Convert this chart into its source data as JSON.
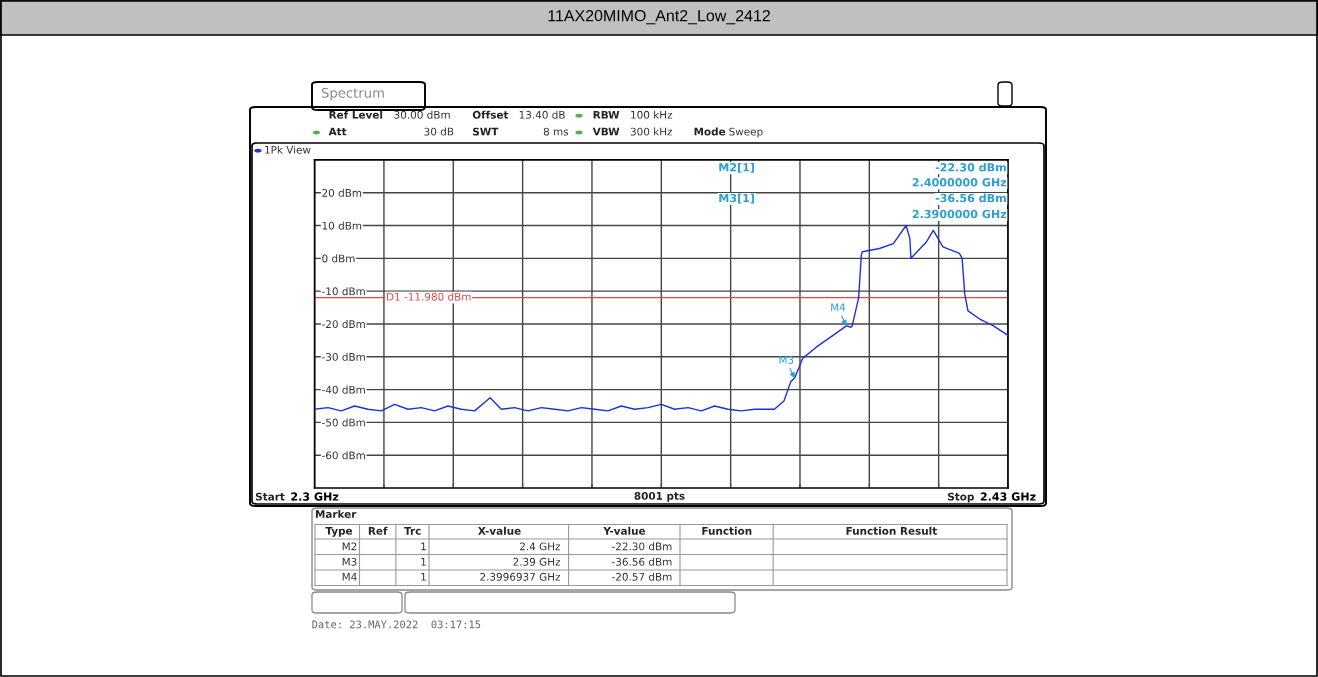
{
  "chart_data": {
    "type": "line",
    "title": "11AX20MIMO_Ant2_Low_2412",
    "xlim": [
      2.3,
      2.43
    ],
    "xticks": [
      {
        "value": 2.3,
        "label": "2.3 GHz"
      },
      {
        "value": 2.313,
        "label": null
      },
      {
        "value": 2.326,
        "label": null
      },
      {
        "value": 2.339,
        "label": null
      },
      {
        "value": 2.352,
        "label": null
      },
      {
        "value": 2.365,
        "label": null
      },
      {
        "value": 2.378,
        "label": null
      },
      {
        "value": 2.391,
        "label": null
      },
      {
        "value": 2.404,
        "label": null
      },
      {
        "value": 2.417,
        "label": null
      },
      {
        "value": 2.43,
        "label": "2.43 GHz"
      }
    ],
    "ylim": [
      -70,
      30
    ],
    "yticks": [
      {
        "value": 20,
        "label": "20 dBm"
      },
      {
        "value": 10,
        "label": "10 dBm"
      },
      {
        "value": 0,
        "label": "0 dBm"
      },
      {
        "value": -10,
        "label": "-10 dBm"
      },
      {
        "value": -20,
        "label": "-20 dBm"
      },
      {
        "value": -30,
        "label": "-30 dBm"
      },
      {
        "value": -40,
        "label": "-40 dBm"
      },
      {
        "value": -50,
        "label": "-50 dBm"
      },
      {
        "value": -60,
        "label": "-60 dBm"
      }
    ],
    "grid": true,
    "series": [
      {
        "color": "#1f2fe0",
        "x": [
          2.3,
          2.3025,
          2.305,
          2.3075,
          2.31,
          2.3125,
          2.315,
          2.3175,
          2.32,
          2.3225,
          2.325,
          2.3275,
          2.33,
          2.3329,
          2.335,
          2.3375,
          2.34,
          2.3425,
          2.345,
          2.3475,
          2.35,
          2.3525,
          2.355,
          2.3575,
          2.36,
          2.3625,
          2.365,
          2.3675,
          2.37,
          2.3725,
          2.375,
          2.3775,
          2.38,
          2.3825,
          2.385,
          2.3862,
          2.388,
          2.3893,
          2.39,
          2.3915,
          2.3941,
          2.3972,
          2.3997,
          2.4006,
          2.4008,
          2.402,
          2.4025,
          2.4027,
          2.4059,
          2.4085,
          2.4109,
          2.4116,
          2.4118,
          2.4147,
          2.416,
          2.4178,
          2.4209,
          2.4214,
          2.4219,
          2.4225,
          2.4247,
          2.4272,
          2.43
        ],
        "values": [
          -46,
          -45.5,
          -46.5,
          -45,
          -46,
          -46.5,
          -44.5,
          -46,
          -45.5,
          -46.5,
          -45,
          -46,
          -46.5,
          -42.5,
          -46,
          -45.5,
          -46.5,
          -45.5,
          -46,
          -46.5,
          -45.5,
          -46,
          -46.5,
          -45,
          -46,
          -45.5,
          -44.5,
          -46,
          -45.5,
          -46.5,
          -45,
          -46,
          -46.5,
          -46,
          -46,
          -46,
          -43.5,
          -37.5,
          -36.5,
          -30.5,
          -27,
          -23.5,
          -20.6,
          -21,
          -20.5,
          -12,
          1,
          2,
          3,
          4.5,
          10,
          6,
          0,
          5,
          8.5,
          3.5,
          1.5,
          0,
          -11,
          -16,
          -18.5,
          -20.5,
          -23.5
        ]
      }
    ],
    "ref_lines": [
      {
        "axis": "y",
        "value": -11.98,
        "label": "D1 -11.980 dBm",
        "color": "#e04848"
      }
    ],
    "annotations": [
      "Spectrum",
      "Ref Level",
      "30.00 dBm",
      "Offset",
      "13.40 dB",
      "RBW",
      "100 kHz",
      "Att",
      "30 dB",
      "SWT",
      "8 ms",
      "VBW",
      "300 kHz",
      "Mode",
      "Sweep",
      "1Pk View",
      "M2[1]",
      "-22.30 dBm",
      "2.4000000 GHz",
      "M3[1]",
      "-36.56 dBm",
      "2.3900000 GHz",
      "8001 pts",
      "Marker",
      "Type",
      "Ref",
      "Trc",
      "X-value",
      "Y-value",
      "Function",
      "Function Result",
      "M2",
      "1",
      "2.4 GHz",
      "-22.30 dBm",
      "M3",
      "1",
      "2.39 GHz",
      "-36.56 dBm",
      "M4",
      "1",
      "2.3996937 GHz",
      "-20.57 dBm",
      "Date: 23.MAY.2022  03:17:15",
      "Start",
      "Stop",
      {
        "text": "M3",
        "x": 2.39,
        "y": -36.56
      },
      {
        "text": "M4",
        "x": 2.3996937,
        "y": -20.57
      }
    ]
  }
}
